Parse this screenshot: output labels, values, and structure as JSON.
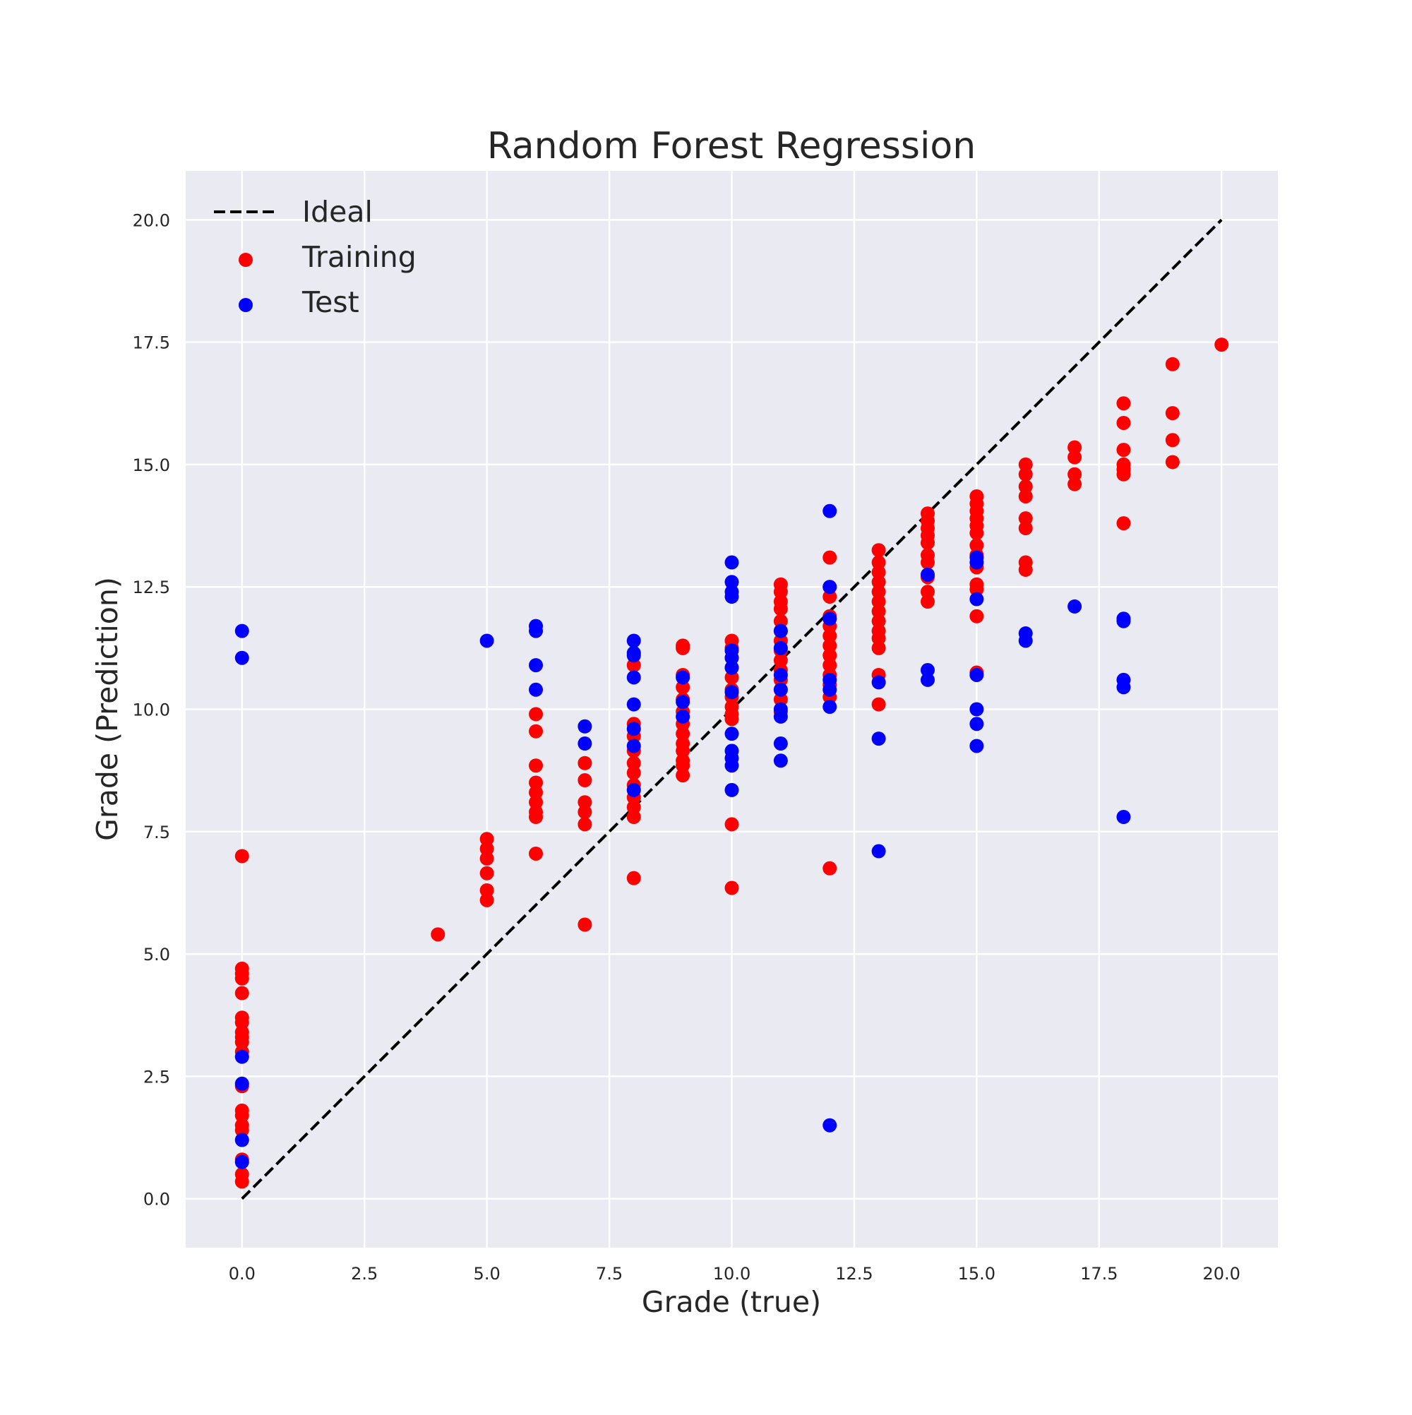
{
  "chart_data": {
    "type": "scatter",
    "title": "Random Forest Regression",
    "xlabel": "Grade (true)",
    "ylabel": "Grade (Prediction)",
    "xlim": [
      -1.15,
      21.15
    ],
    "ylim": [
      -1,
      21
    ],
    "xticks": [
      "0.0",
      "2.5",
      "5.0",
      "7.5",
      "10.0",
      "12.5",
      "15.0",
      "17.5",
      "20.0"
    ],
    "yticks": [
      "0.0",
      "2.5",
      "5.0",
      "7.5",
      "10.0",
      "12.5",
      "15.0",
      "17.5",
      "20.0"
    ],
    "grid": true,
    "legend_position": "top-left",
    "background_color": "#eaeaf2",
    "grid_color": "#ffffff",
    "ideal_line": {
      "name": "Ideal",
      "x": [
        0,
        20
      ],
      "y": [
        0,
        20
      ],
      "color": "#000000",
      "style": "dashed"
    },
    "series": [
      {
        "name": "Training",
        "color": "#ff0000",
        "points": [
          [
            0,
            7.0
          ],
          [
            0,
            4.7
          ],
          [
            0,
            4.6
          ],
          [
            0,
            4.5
          ],
          [
            0,
            4.2
          ],
          [
            0,
            3.7
          ],
          [
            0,
            3.6
          ],
          [
            0,
            3.4
          ],
          [
            0,
            3.3
          ],
          [
            0,
            3.2
          ],
          [
            0,
            3.0
          ],
          [
            0,
            2.3
          ],
          [
            0,
            1.8
          ],
          [
            0,
            1.7
          ],
          [
            0,
            1.5
          ],
          [
            0,
            1.4
          ],
          [
            0,
            0.8
          ],
          [
            0,
            0.5
          ],
          [
            0,
            0.35
          ],
          [
            4,
            5.4
          ],
          [
            5,
            7.35
          ],
          [
            5,
            7.15
          ],
          [
            5,
            6.95
          ],
          [
            5,
            6.65
          ],
          [
            5,
            6.3
          ],
          [
            5,
            6.1
          ],
          [
            6,
            9.9
          ],
          [
            6,
            9.55
          ],
          [
            6,
            8.85
          ],
          [
            6,
            8.5
          ],
          [
            6,
            8.3
          ],
          [
            6,
            8.1
          ],
          [
            6,
            7.9
          ],
          [
            6,
            7.8
          ],
          [
            6,
            7.05
          ],
          [
            7,
            8.9
          ],
          [
            7,
            8.55
          ],
          [
            7,
            8.1
          ],
          [
            7,
            7.9
          ],
          [
            7,
            7.65
          ],
          [
            7,
            5.6
          ],
          [
            8,
            10.9
          ],
          [
            8,
            9.7
          ],
          [
            8,
            9.45
          ],
          [
            8,
            9.15
          ],
          [
            8,
            8.9
          ],
          [
            8,
            8.7
          ],
          [
            8,
            8.45
          ],
          [
            8,
            8.2
          ],
          [
            8,
            8.0
          ],
          [
            8,
            7.8
          ],
          [
            8,
            6.55
          ],
          [
            9,
            11.3
          ],
          [
            9,
            11.25
          ],
          [
            9,
            10.7
          ],
          [
            9,
            10.45
          ],
          [
            9,
            10.2
          ],
          [
            9,
            9.95
          ],
          [
            9,
            9.7
          ],
          [
            9,
            9.5
          ],
          [
            9,
            9.3
          ],
          [
            9,
            9.15
          ],
          [
            9,
            8.95
          ],
          [
            9,
            8.85
          ],
          [
            9,
            8.65
          ],
          [
            10,
            11.4
          ],
          [
            10,
            11.25
          ],
          [
            10,
            11.05
          ],
          [
            10,
            10.85
          ],
          [
            10,
            10.65
          ],
          [
            10,
            10.4
          ],
          [
            10,
            10.25
          ],
          [
            10,
            10.05
          ],
          [
            10,
            9.9
          ],
          [
            10,
            9.8
          ],
          [
            10,
            7.65
          ],
          [
            10,
            6.35
          ],
          [
            11,
            12.55
          ],
          [
            11,
            12.4
          ],
          [
            11,
            12.2
          ],
          [
            11,
            12.05
          ],
          [
            11,
            11.8
          ],
          [
            11,
            11.6
          ],
          [
            11,
            11.4
          ],
          [
            11,
            11.2
          ],
          [
            11,
            11.0
          ],
          [
            11,
            10.8
          ],
          [
            11,
            10.6
          ],
          [
            11,
            10.4
          ],
          [
            11,
            10.2
          ],
          [
            11,
            9.95
          ],
          [
            12,
            13.1
          ],
          [
            12,
            12.5
          ],
          [
            12,
            12.3
          ],
          [
            12,
            11.9
          ],
          [
            12,
            11.7
          ],
          [
            12,
            11.5
          ],
          [
            12,
            11.3
          ],
          [
            12,
            11.1
          ],
          [
            12,
            10.9
          ],
          [
            12,
            10.7
          ],
          [
            12,
            10.5
          ],
          [
            12,
            10.25
          ],
          [
            12,
            6.75
          ],
          [
            13,
            13.25
          ],
          [
            13,
            13.0
          ],
          [
            13,
            12.8
          ],
          [
            13,
            12.6
          ],
          [
            13,
            12.4
          ],
          [
            13,
            12.2
          ],
          [
            13,
            12.0
          ],
          [
            13,
            11.8
          ],
          [
            13,
            11.6
          ],
          [
            13,
            11.45
          ],
          [
            13,
            11.25
          ],
          [
            13,
            10.7
          ],
          [
            13,
            10.1
          ],
          [
            14,
            14.0
          ],
          [
            14,
            13.85
          ],
          [
            14,
            13.7
          ],
          [
            14,
            13.55
          ],
          [
            14,
            13.4
          ],
          [
            14,
            13.15
          ],
          [
            14,
            13.0
          ],
          [
            14,
            12.7
          ],
          [
            14,
            12.4
          ],
          [
            14,
            12.2
          ],
          [
            15,
            14.35
          ],
          [
            15,
            14.2
          ],
          [
            15,
            14.05
          ],
          [
            15,
            13.9
          ],
          [
            15,
            13.75
          ],
          [
            15,
            13.6
          ],
          [
            15,
            13.35
          ],
          [
            15,
            13.15
          ],
          [
            15,
            12.9
          ],
          [
            15,
            12.55
          ],
          [
            15,
            12.45
          ],
          [
            15,
            11.9
          ],
          [
            15,
            10.75
          ],
          [
            16,
            15.0
          ],
          [
            16,
            14.8
          ],
          [
            16,
            14.55
          ],
          [
            16,
            14.35
          ],
          [
            16,
            13.9
          ],
          [
            16,
            13.7
          ],
          [
            16,
            13.0
          ],
          [
            16,
            12.85
          ],
          [
            17,
            15.35
          ],
          [
            17,
            15.15
          ],
          [
            17,
            14.8
          ],
          [
            17,
            14.6
          ],
          [
            18,
            16.25
          ],
          [
            18,
            15.85
          ],
          [
            18,
            15.3
          ],
          [
            18,
            15.0
          ],
          [
            18,
            14.9
          ],
          [
            18,
            14.8
          ],
          [
            18,
            13.8
          ],
          [
            19,
            17.05
          ],
          [
            19,
            16.05
          ],
          [
            19,
            15.5
          ],
          [
            19,
            15.05
          ],
          [
            20,
            17.45
          ]
        ]
      },
      {
        "name": "Test",
        "color": "#0000ff",
        "points": [
          [
            0,
            11.6
          ],
          [
            0,
            11.05
          ],
          [
            0,
            2.9
          ],
          [
            0,
            2.35
          ],
          [
            0,
            1.2
          ],
          [
            0,
            0.75
          ],
          [
            5,
            11.4
          ],
          [
            6,
            11.7
          ],
          [
            6,
            11.6
          ],
          [
            6,
            10.9
          ],
          [
            6,
            10.4
          ],
          [
            7,
            9.65
          ],
          [
            7,
            9.3
          ],
          [
            8,
            11.4
          ],
          [
            8,
            11.15
          ],
          [
            8,
            11.1
          ],
          [
            8,
            10.65
          ],
          [
            8,
            10.1
          ],
          [
            8,
            9.6
          ],
          [
            8,
            9.25
          ],
          [
            8,
            8.35
          ],
          [
            9,
            10.65
          ],
          [
            9,
            10.15
          ],
          [
            9,
            9.85
          ],
          [
            10,
            13.0
          ],
          [
            10,
            12.6
          ],
          [
            10,
            12.4
          ],
          [
            10,
            12.3
          ],
          [
            10,
            11.2
          ],
          [
            10,
            11.05
          ],
          [
            10,
            10.85
          ],
          [
            10,
            10.35
          ],
          [
            10,
            9.5
          ],
          [
            10,
            9.15
          ],
          [
            10,
            9.0
          ],
          [
            10,
            8.85
          ],
          [
            10,
            8.35
          ],
          [
            11,
            11.6
          ],
          [
            11,
            11.25
          ],
          [
            11,
            10.7
          ],
          [
            11,
            10.4
          ],
          [
            11,
            10.0
          ],
          [
            11,
            9.85
          ],
          [
            11,
            9.3
          ],
          [
            11,
            8.95
          ],
          [
            12,
            14.05
          ],
          [
            12,
            12.5
          ],
          [
            12,
            11.85
          ],
          [
            12,
            10.6
          ],
          [
            12,
            10.4
          ],
          [
            12,
            10.05
          ],
          [
            12,
            1.5
          ],
          [
            13,
            10.55
          ],
          [
            13,
            9.4
          ],
          [
            13,
            7.1
          ],
          [
            14,
            12.75
          ],
          [
            14,
            10.8
          ],
          [
            14,
            10.6
          ],
          [
            15,
            13.1
          ],
          [
            15,
            13.0
          ],
          [
            15,
            12.25
          ],
          [
            15,
            10.7
          ],
          [
            15,
            10.0
          ],
          [
            15,
            9.7
          ],
          [
            15,
            9.25
          ],
          [
            16,
            11.55
          ],
          [
            16,
            11.4
          ],
          [
            17,
            12.1
          ],
          [
            18,
            11.85
          ],
          [
            18,
            11.8
          ],
          [
            18,
            10.6
          ],
          [
            18,
            10.45
          ],
          [
            18,
            7.8
          ]
        ]
      }
    ]
  }
}
